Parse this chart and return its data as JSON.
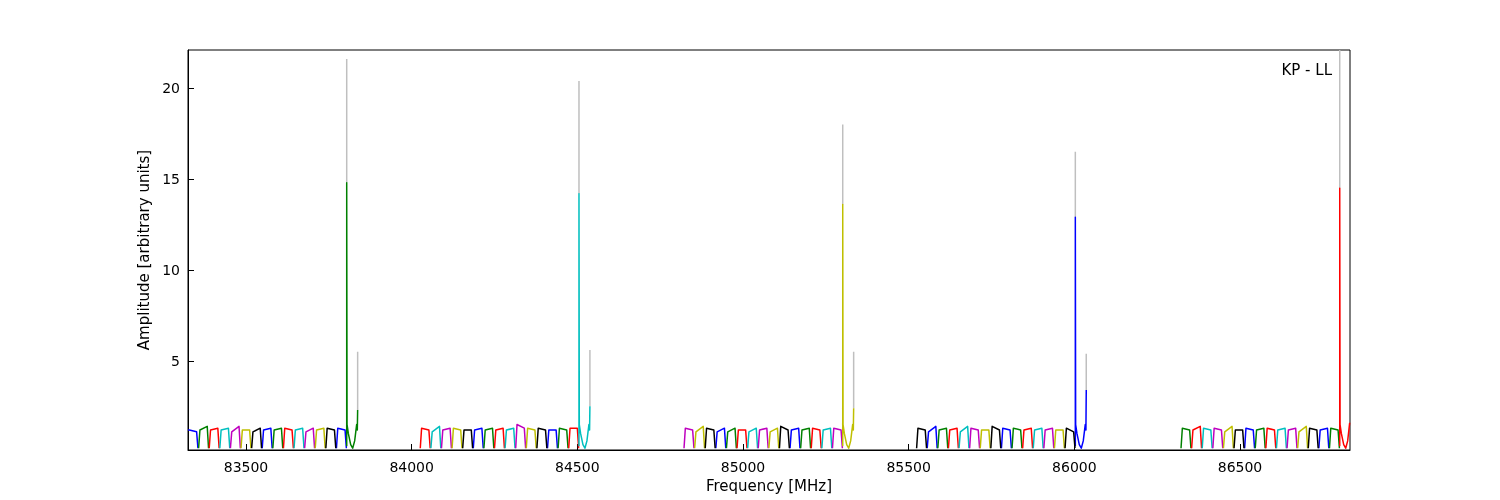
{
  "chart_data": {
    "type": "line",
    "xlabel": "Frequency [MHz]",
    "ylabel": "Amplitude [arbitrary units]",
    "annotations": [
      "KP - LL"
    ],
    "xlim": [
      83325,
      86832
    ],
    "ylim": [
      0.1,
      22.1
    ],
    "xticks": [
      83500,
      84000,
      84500,
      85000,
      85500,
      86000,
      86500
    ],
    "yticks": [
      5,
      10,
      15,
      20
    ],
    "grid": false,
    "series": [
      {
        "color": "#bfbfbf",
        "x": [
          83804,
          83804,
          83805,
          83837,
          83837,
          83838,
          84505,
          84505,
          84506,
          84538,
          84538,
          84539,
          85301,
          85301,
          85302,
          85334,
          85334,
          85335,
          86003,
          86003,
          86004,
          86036,
          86036,
          86037,
          86801,
          86801
        ],
        "values": [
          14.8,
          21.6,
          null,
          2.3,
          5.5,
          null,
          14.2,
          20.4,
          null,
          2.5,
          5.6,
          null,
          13.6,
          18.0,
          null,
          2.4,
          5.5,
          null,
          12.9,
          16.5,
          null,
          3.4,
          5.4,
          null,
          14.5,
          22.1
        ]
      },
      {
        "color": "#0000ff",
        "x": [
          83325,
          83329,
          83351,
          83355,
          83356,
          83549,
          83553,
          83575,
          83579,
          83580,
          83773,
          83777,
          83799,
          83803,
          83804,
          84186,
          84190,
          84212,
          84216,
          84217,
          84410,
          84414,
          84436,
          84440,
          84441,
          84918,
          84922,
          84944,
          84948,
          84949,
          85142,
          85146,
          85168,
          85172,
          85173,
          85556,
          85560,
          85582,
          85586,
          85587,
          85780,
          85784,
          85806,
          85810,
          85811,
          86003,
          86003,
          86004,
          86008,
          86015,
          86021,
          86027,
          86033,
          86035,
          86036,
          86037,
          86514,
          86518,
          86540,
          86544,
          86545,
          86738,
          86742,
          86764,
          86768
        ],
        "values": [
          1.2,
          1.2,
          1.1,
          0.2,
          null,
          0.2,
          1.2,
          1.3,
          0.2,
          null,
          0.2,
          1.3,
          1.2,
          0.2,
          null,
          0.2,
          1.2,
          1.3,
          0.2,
          null,
          0.2,
          1.2,
          1.2,
          0.2,
          null,
          0.2,
          1.1,
          1.3,
          0.2,
          null,
          0.2,
          1.2,
          1.3,
          0.2,
          null,
          0.2,
          1.1,
          1.4,
          0.2,
          null,
          0.2,
          1.3,
          1.2,
          0.2,
          null,
          0.3,
          12.9,
          1.5,
          1.0,
          0.4,
          0.2,
          0.6,
          1.5,
          1.2,
          3.4,
          null,
          0.2,
          1.3,
          1.2,
          0.2,
          null,
          0.2,
          1.2,
          1.3,
          0.2
        ]
      },
      {
        "color": "#008000",
        "x": [
          83357,
          83361,
          83383,
          83387,
          83388,
          83581,
          83585,
          83607,
          83611,
          83612,
          83804,
          83804,
          83805,
          83809,
          83816,
          83822,
          83828,
          83834,
          83836,
          83837,
          83838,
          84218,
          84222,
          84244,
          84248,
          84249,
          84442,
          84446,
          84468,
          84472,
          84473,
          84950,
          84954,
          84976,
          84980,
          84981,
          85174,
          85178,
          85200,
          85204,
          85205,
          85588,
          85592,
          85614,
          85618,
          85619,
          85812,
          85816,
          85838,
          85842,
          85843,
          86322,
          86326,
          86348,
          86352,
          86353,
          86546,
          86550,
          86572,
          86576,
          86577,
          86770,
          86774,
          86796,
          86800
        ],
        "values": [
          0.2,
          1.2,
          1.4,
          0.2,
          null,
          0.2,
          1.2,
          1.3,
          0.2,
          null,
          0.3,
          14.8,
          1.5,
          1.0,
          0.4,
          0.2,
          0.6,
          1.5,
          1.2,
          2.3,
          null,
          0.2,
          1.2,
          1.3,
          0.2,
          null,
          0.2,
          1.3,
          1.2,
          0.2,
          null,
          0.2,
          1.1,
          1.3,
          0.2,
          null,
          0.2,
          1.2,
          1.3,
          0.2,
          null,
          0.2,
          1.2,
          1.3,
          0.2,
          null,
          0.2,
          1.3,
          1.2,
          0.2,
          null,
          0.2,
          1.3,
          1.2,
          0.2,
          null,
          0.2,
          1.2,
          1.3,
          0.2,
          null,
          0.2,
          1.3,
          1.2,
          0.2
        ]
      },
      {
        "color": "#ff0000",
        "x": [
          83389,
          83393,
          83415,
          83419,
          83420,
          83613,
          83617,
          83639,
          83643,
          83644,
          84026,
          84030,
          84052,
          84056,
          84057,
          84250,
          84254,
          84276,
          84280,
          84281,
          84474,
          84478,
          84500,
          84504,
          84505,
          84982,
          84986,
          85008,
          85012,
          85013,
          85206,
          85210,
          85232,
          85236,
          85237,
          85620,
          85624,
          85646,
          85650,
          85651,
          85844,
          85848,
          85870,
          85874,
          85875,
          86354,
          86358,
          86380,
          86384,
          86385,
          86578,
          86582,
          86604,
          86608,
          86609,
          86801,
          86801,
          86802,
          86806,
          86813,
          86819,
          86825,
          86831
        ],
        "values": [
          0.2,
          1.2,
          1.3,
          0.2,
          null,
          0.2,
          1.3,
          1.2,
          0.2,
          null,
          0.2,
          1.3,
          1.2,
          0.2,
          null,
          0.2,
          1.2,
          1.3,
          0.2,
          null,
          0.2,
          1.3,
          1.3,
          0.2,
          null,
          0.2,
          1.2,
          1.2,
          0.2,
          null,
          0.2,
          1.3,
          1.2,
          0.2,
          null,
          0.2,
          1.2,
          1.3,
          0.2,
          null,
          0.2,
          1.2,
          1.3,
          0.2,
          null,
          0.2,
          1.2,
          1.4,
          0.2,
          null,
          0.2,
          1.3,
          1.2,
          0.2,
          null,
          0.3,
          14.5,
          1.5,
          1.0,
          0.4,
          0.2,
          0.6,
          1.6
        ]
      },
      {
        "color": "#00bfbf",
        "x": [
          83421,
          83425,
          83447,
          83451,
          83452,
          83645,
          83649,
          83671,
          83675,
          83676,
          84058,
          84062,
          84084,
          84088,
          84089,
          84282,
          84286,
          84308,
          84312,
          84313,
          84505,
          84505,
          84506,
          84510,
          84517,
          84523,
          84529,
          84535,
          84537,
          84538,
          84539,
          85014,
          85018,
          85040,
          85044,
          85045,
          85238,
          85242,
          85264,
          85268,
          85269,
          85652,
          85656,
          85678,
          85682,
          85683,
          85876,
          85880,
          85902,
          85906,
          85907,
          86386,
          86390,
          86412,
          86416,
          86417,
          86610,
          86614,
          86636,
          86640
        ],
        "values": [
          0.2,
          1.2,
          1.3,
          0.2,
          null,
          0.2,
          1.2,
          1.3,
          0.2,
          null,
          0.2,
          1.1,
          1.4,
          0.2,
          null,
          0.2,
          1.2,
          1.3,
          0.2,
          null,
          0.3,
          14.2,
          1.5,
          1.0,
          0.4,
          0.2,
          0.6,
          1.5,
          1.2,
          2.5,
          null,
          0.2,
          1.1,
          1.3,
          0.2,
          null,
          0.2,
          1.2,
          1.3,
          0.2,
          null,
          0.2,
          1.1,
          1.4,
          0.2,
          null,
          0.2,
          1.2,
          1.3,
          0.2,
          null,
          0.2,
          1.3,
          1.2,
          0.2,
          null,
          0.2,
          1.2,
          1.3,
          0.2
        ]
      },
      {
        "color": "#bf00bf",
        "x": [
          83453,
          83457,
          83479,
          83483,
          83484,
          83677,
          83681,
          83703,
          83707,
          83708,
          84090,
          84094,
          84116,
          84120,
          84121,
          84314,
          84318,
          84340,
          84344,
          84345,
          84822,
          84826,
          84848,
          84852,
          84853,
          85046,
          85050,
          85072,
          85076,
          85077,
          85270,
          85274,
          85296,
          85300,
          85301,
          85684,
          85688,
          85710,
          85714,
          85715,
          85908,
          85912,
          85934,
          85938,
          85939,
          86418,
          86422,
          86444,
          86448,
          86449,
          86642,
          86646,
          86668,
          86672
        ],
        "values": [
          0.2,
          1.1,
          1.4,
          0.2,
          null,
          0.2,
          1.1,
          1.3,
          0.2,
          null,
          0.2,
          1.2,
          1.3,
          0.2,
          null,
          0.2,
          1.5,
          1.3,
          0.2,
          null,
          0.2,
          1.3,
          1.2,
          0.2,
          null,
          0.2,
          1.2,
          1.3,
          0.2,
          null,
          0.2,
          1.3,
          1.2,
          0.2,
          null,
          0.2,
          1.3,
          1.2,
          0.2,
          null,
          0.2,
          1.2,
          1.3,
          0.2,
          null,
          0.2,
          1.3,
          1.2,
          0.2,
          null,
          0.2,
          1.2,
          1.3,
          0.2
        ]
      },
      {
        "color": "#bfbf00",
        "x": [
          83485,
          83489,
          83511,
          83515,
          83516,
          83709,
          83713,
          83735,
          83739,
          83740,
          84122,
          84126,
          84148,
          84152,
          84153,
          84346,
          84350,
          84372,
          84376,
          84377,
          84854,
          84858,
          84880,
          84884,
          84885,
          85078,
          85082,
          85104,
          85108,
          85109,
          85301,
          85301,
          85302,
          85306,
          85313,
          85319,
          85325,
          85331,
          85333,
          85334,
          85335,
          85716,
          85720,
          85742,
          85746,
          85747,
          85940,
          85944,
          85966,
          85970,
          85971,
          86450,
          86454,
          86476,
          86480,
          86481,
          86674,
          86678,
          86700,
          86704
        ],
        "values": [
          0.2,
          1.2,
          1.2,
          0.2,
          null,
          0.2,
          1.2,
          1.3,
          0.2,
          null,
          0.2,
          1.3,
          1.2,
          0.2,
          null,
          0.2,
          1.3,
          1.2,
          0.2,
          null,
          0.2,
          1.1,
          1.4,
          0.2,
          null,
          0.2,
          1.1,
          1.3,
          0.2,
          null,
          0.3,
          13.6,
          1.5,
          1.0,
          0.4,
          0.2,
          0.6,
          1.5,
          1.2,
          2.4,
          null,
          0.2,
          1.2,
          1.2,
          0.2,
          null,
          0.2,
          1.2,
          1.2,
          0.2,
          null,
          0.2,
          1.1,
          1.4,
          0.2,
          null,
          0.2,
          1.1,
          1.4,
          0.2
        ]
      },
      {
        "color": "#000000",
        "x": [
          83517,
          83521,
          83543,
          83547,
          83548,
          83741,
          83745,
          83767,
          83771,
          83772,
          84154,
          84158,
          84180,
          84184,
          84185,
          84378,
          84382,
          84404,
          84408,
          84409,
          84886,
          84890,
          84912,
          84916,
          84917,
          85110,
          85114,
          85136,
          85140,
          85141,
          85524,
          85528,
          85550,
          85554,
          85555,
          85748,
          85752,
          85774,
          85778,
          85779,
          85972,
          85976,
          85998,
          86002,
          86003,
          86482,
          86486,
          86508,
          86512,
          86513,
          86706,
          86710,
          86732,
          86736
        ],
        "values": [
          0.2,
          1.1,
          1.3,
          0.2,
          null,
          0.2,
          1.3,
          1.2,
          0.2,
          null,
          0.2,
          1.2,
          1.2,
          0.2,
          null,
          0.2,
          1.3,
          1.2,
          0.2,
          null,
          0.2,
          1.3,
          1.2,
          0.2,
          null,
          0.2,
          1.4,
          1.2,
          0.2,
          null,
          0.2,
          1.3,
          1.2,
          0.2,
          null,
          0.2,
          1.4,
          1.2,
          0.2,
          null,
          0.2,
          1.3,
          1.1,
          0.2,
          null,
          0.2,
          1.2,
          1.2,
          0.2,
          null,
          0.2,
          1.3,
          1.2,
          0.2
        ]
      }
    ]
  }
}
